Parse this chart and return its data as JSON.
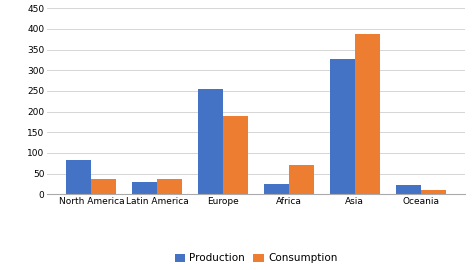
{
  "categories": [
    "North America",
    "Latin America",
    "Europe",
    "Africa",
    "Asia",
    "Oceania"
  ],
  "production": [
    83,
    30,
    255,
    25,
    328,
    23
  ],
  "consumption": [
    38,
    38,
    190,
    72,
    388,
    10
  ],
  "production_color": "#4472c4",
  "consumption_color": "#ed7d31",
  "ylim": [
    0,
    450
  ],
  "yticks": [
    0,
    50,
    100,
    150,
    200,
    250,
    300,
    350,
    400,
    450
  ],
  "legend_labels": [
    "Production",
    "Consumption"
  ],
  "bar_width": 0.38,
  "background_color": "#ffffff",
  "grid_color": "#d0d0d0",
  "tick_fontsize": 6.5,
  "legend_fontsize": 7.5,
  "figsize": [
    4.74,
    2.7
  ],
  "dpi": 100
}
